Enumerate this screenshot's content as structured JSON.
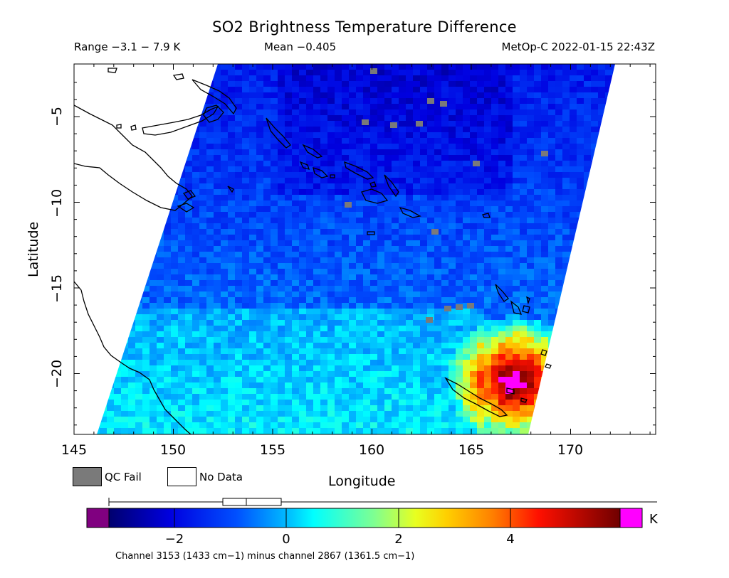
{
  "title": "SO2 Brightness Temperature Difference",
  "range_text": "Range −3.1 − 7.9 K",
  "mean_text": "Mean −0.405",
  "satellite_text": "MetOp-C 2022-01-15 22:43Z",
  "axes": {
    "x_label": "Longitude",
    "y_label": "Latitude",
    "x_ticks": [
      "145",
      "150",
      "155",
      "160",
      "165",
      "170"
    ],
    "y_ticks": [
      "−5",
      "−10",
      "−15",
      "−20"
    ]
  },
  "legend": {
    "qc_fail_label": "QC Fail",
    "no_data_label": "No Data",
    "qc_fail_color": "#7a7a7a",
    "no_data_color": "#ffffff"
  },
  "colorbar": {
    "unit": "K",
    "ticks": [
      "−2",
      "0",
      "2",
      "4"
    ],
    "under_color": "#800080",
    "over_color": "#ff00ff",
    "channel_note": "Channel 3153 (1433 cm−1) minus channel 2867 (1361.5 cm−1)"
  }
}
